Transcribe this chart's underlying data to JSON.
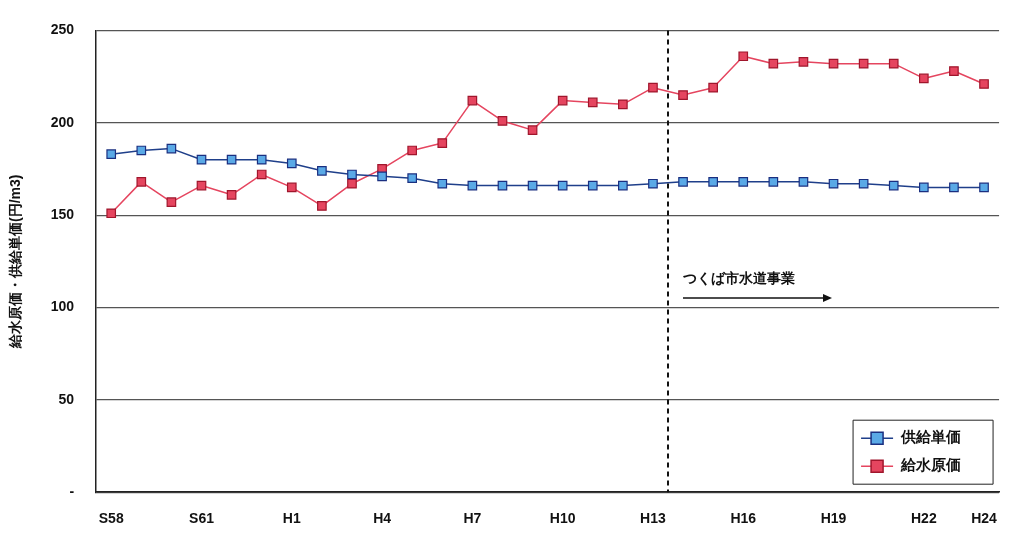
{
  "chart_data": {
    "type": "line",
    "ylabel": "給水原価・供給単価(円/m3)",
    "categories": [
      "S58",
      null,
      null,
      "S61",
      null,
      null,
      "H1",
      null,
      null,
      "H4",
      null,
      null,
      "H7",
      null,
      null,
      "H10",
      null,
      null,
      "H13",
      null,
      null,
      "H16",
      null,
      null,
      "H19",
      null,
      null,
      "H22",
      null,
      "H24"
    ],
    "series": [
      {
        "name": "供給単価",
        "color": "#5aa9e6",
        "values": [
          183,
          185,
          186,
          180,
          180,
          180,
          178,
          174,
          172,
          171,
          170,
          167,
          166,
          166,
          166,
          166,
          166,
          166,
          167,
          168,
          168,
          168,
          168,
          168,
          167,
          167,
          166,
          165,
          165,
          165
        ]
      },
      {
        "name": "給水原価",
        "color": "#e5455f",
        "values": [
          151,
          168,
          157,
          166,
          161,
          172,
          165,
          155,
          167,
          175,
          185,
          189,
          212,
          201,
          196,
          212,
          211,
          210,
          219,
          215,
          219,
          236,
          232,
          233,
          232,
          232,
          232,
          224,
          228,
          221
        ]
      }
    ],
    "ylim": [
      0,
      250
    ],
    "yticks": [
      {
        "value": 0,
        "label": "-"
      },
      50,
      100,
      150,
      200,
      250
    ],
    "grid": "y",
    "legend": "bottom right",
    "marker": "square",
    "line_style": "solid",
    "ref_lines": [
      {
        "axis": "x",
        "value": "H13",
        "line_style": "dashed",
        "color": "#111111"
      }
    ],
    "annotations": [
      "つくば市水道事業"
    ]
  }
}
